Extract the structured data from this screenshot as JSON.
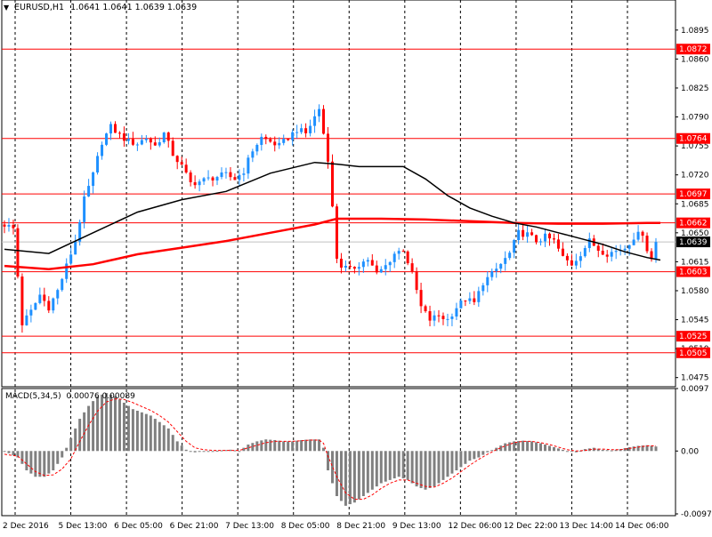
{
  "header": {
    "symbol": "EURUSD,H1",
    "ohlc": "1.0641 1.0641 1.0639 1.0639"
  },
  "colors": {
    "background": "#ffffff",
    "bull": "#1e90ff",
    "bear": "#ff0000",
    "ma_fast": "#000000",
    "ma_slow": "#ff0000",
    "level_line": "#ff0000",
    "macd_hist": "#808080",
    "macd_signal": "#ff0000",
    "current_price_bg": "#000000"
  },
  "chart_data": [
    {
      "type": "candlestick",
      "title": "EURUSD,H1",
      "grid": "vertical-dashed",
      "ylim": [
        1.0465,
        1.0912
      ],
      "y_ticks": [
        "1.0895",
        "1.0860",
        "1.0825",
        "1.0790",
        "1.0755",
        "1.0720",
        "1.0685",
        "1.0650",
        "1.0615",
        "1.0580",
        "1.0545",
        "1.0510",
        "1.0475"
      ],
      "x_ticks": [
        "2 Dec 2016",
        "5 Dec 13:00",
        "6 Dec 05:00",
        "6 Dec 21:00",
        "7 Dec 13:00",
        "8 Dec 05:00",
        "8 Dec 21:00",
        "9 Dec 13:00",
        "12 Dec 06:00",
        "12 Dec 22:00",
        "13 Dec 14:00",
        "14 Dec 06:00"
      ],
      "levels": [
        "1.0872",
        "1.0764",
        "1.0697",
        "1.0662",
        "1.0603",
        "1.0525",
        "1.0505"
      ],
      "current_price": "1.0639",
      "close_path": [
        [
          0,
          1.066
        ],
        [
          2,
          1.0655
        ],
        [
          4,
          1.054
        ],
        [
          6,
          1.0555
        ],
        [
          8,
          1.0575
        ],
        [
          10,
          1.056
        ],
        [
          12,
          1.058
        ],
        [
          14,
          1.061
        ],
        [
          16,
          1.064
        ],
        [
          18,
          1.069
        ],
        [
          20,
          1.072
        ],
        [
          22,
          1.076
        ],
        [
          24,
          1.0778
        ],
        [
          26,
          1.0768
        ],
        [
          28,
          1.076
        ],
        [
          30,
          1.0758
        ],
        [
          32,
          1.0765
        ],
        [
          34,
          1.0755
        ],
        [
          36,
          1.077
        ],
        [
          38,
          1.0745
        ],
        [
          40,
          1.073
        ],
        [
          42,
          1.071
        ],
        [
          44,
          1.0712
        ],
        [
          46,
          1.0715
        ],
        [
          48,
          1.0718
        ],
        [
          50,
          1.072
        ],
        [
          52,
          1.0715
        ],
        [
          54,
          1.0725
        ],
        [
          56,
          1.075
        ],
        [
          58,
          1.0765
        ],
        [
          60,
          1.076
        ],
        [
          62,
          1.0755
        ],
        [
          64,
          1.0765
        ],
        [
          66,
          1.0775
        ],
        [
          68,
          1.077
        ],
        [
          70,
          1.079
        ],
        [
          71,
          1.08
        ],
        [
          72,
          1.077
        ],
        [
          73,
          1.074
        ],
        [
          74,
          1.068
        ],
        [
          75,
          1.062
        ],
        [
          76,
          1.061
        ],
        [
          78,
          1.0605
        ],
        [
          80,
          1.0612
        ],
        [
          82,
          1.0618
        ],
        [
          84,
          1.06
        ],
        [
          86,
          1.061
        ],
        [
          88,
          1.0625
        ],
        [
          90,
          1.063
        ],
        [
          92,
          1.06
        ],
        [
          93,
          1.058
        ],
        [
          94,
          1.056
        ],
        [
          96,
          1.0545
        ],
        [
          98,
          1.055
        ],
        [
          100,
          1.0545
        ],
        [
          102,
          1.056
        ],
        [
          104,
          1.057
        ],
        [
          106,
          1.0565
        ],
        [
          108,
          1.059
        ],
        [
          110,
          1.06
        ],
        [
          112,
          1.0612
        ],
        [
          114,
          1.0625
        ],
        [
          116,
          1.065
        ],
        [
          118,
          1.0648
        ],
        [
          120,
          1.064
        ],
        [
          122,
          1.0645
        ],
        [
          124,
          1.064
        ],
        [
          126,
          1.062
        ],
        [
          128,
          1.0612
        ],
        [
          130,
          1.0625
        ],
        [
          132,
          1.064
        ],
        [
          134,
          1.063
        ],
        [
          136,
          1.0625
        ],
        [
          138,
          1.0628
        ],
        [
          140,
          1.0632
        ],
        [
          142,
          1.0645
        ],
        [
          144,
          1.065
        ],
        [
          145,
          1.063
        ],
        [
          146,
          1.0618
        ],
        [
          147,
          1.0639
        ]
      ],
      "ma_fast": [
        [
          0,
          1.063
        ],
        [
          10,
          1.0625
        ],
        [
          20,
          1.065
        ],
        [
          30,
          1.0675
        ],
        [
          40,
          1.069
        ],
        [
          50,
          1.07
        ],
        [
          60,
          1.0722
        ],
        [
          70,
          1.0735
        ],
        [
          75,
          1.0733
        ],
        [
          80,
          1.073
        ],
        [
          90,
          1.073
        ],
        [
          95,
          1.0715
        ],
        [
          100,
          1.0695
        ],
        [
          105,
          1.068
        ],
        [
          110,
          1.067
        ],
        [
          115,
          1.0662
        ],
        [
          120,
          1.0657
        ],
        [
          125,
          1.065
        ],
        [
          130,
          1.0643
        ],
        [
          135,
          1.0636
        ],
        [
          140,
          1.0627
        ],
        [
          145,
          1.062
        ],
        [
          148,
          1.0617
        ]
      ],
      "ma_slow": [
        [
          0,
          1.061
        ],
        [
          10,
          1.0606
        ],
        [
          20,
          1.0612
        ],
        [
          30,
          1.0624
        ],
        [
          40,
          1.0632
        ],
        [
          50,
          1.064
        ],
        [
          60,
          1.065
        ],
        [
          70,
          1.066
        ],
        [
          75,
          1.0667
        ],
        [
          85,
          1.0667
        ],
        [
          95,
          1.0666
        ],
        [
          105,
          1.0664
        ],
        [
          115,
          1.0662
        ],
        [
          125,
          1.0661
        ],
        [
          135,
          1.0661
        ],
        [
          145,
          1.0662
        ],
        [
          148,
          1.0662
        ]
      ]
    },
    {
      "type": "bar",
      "title": "MACD(5,34,5)",
      "values_label": "0.00076 0.00089",
      "ylim": [
        -0.00976,
        0.0097
      ],
      "y_ticks": [
        "0.0097",
        "0.00",
        "-0.00976"
      ],
      "histogram_path": [
        [
          0,
          0.0
        ],
        [
          3,
          -0.001
        ],
        [
          5,
          -0.003
        ],
        [
          7,
          -0.004
        ],
        [
          9,
          -0.004
        ],
        [
          11,
          -0.003
        ],
        [
          13,
          -0.001
        ],
        [
          15,
          0.002
        ],
        [
          17,
          0.005
        ],
        [
          19,
          0.007
        ],
        [
          21,
          0.0085
        ],
        [
          23,
          0.009
        ],
        [
          25,
          0.0085
        ],
        [
          27,
          0.0075
        ],
        [
          29,
          0.0065
        ],
        [
          31,
          0.006
        ],
        [
          33,
          0.0055
        ],
        [
          35,
          0.0045
        ],
        [
          37,
          0.0035
        ],
        [
          39,
          0.0015
        ],
        [
          41,
          0.0002
        ],
        [
          43,
          -0.0002
        ],
        [
          45,
          0.0
        ],
        [
          47,
          0.0
        ],
        [
          49,
          0.0001
        ],
        [
          51,
          0.0002
        ],
        [
          53,
          0.0
        ],
        [
          55,
          0.001
        ],
        [
          57,
          0.0015
        ],
        [
          59,
          0.0018
        ],
        [
          61,
          0.0017
        ],
        [
          63,
          0.0015
        ],
        [
          65,
          0.0015
        ],
        [
          67,
          0.0017
        ],
        [
          69,
          0.0018
        ],
        [
          71,
          0.0018
        ],
        [
          72,
          0.0005
        ],
        [
          73,
          -0.003
        ],
        [
          75,
          -0.007
        ],
        [
          77,
          -0.0085
        ],
        [
          79,
          -0.008
        ],
        [
          81,
          -0.007
        ],
        [
          83,
          -0.006
        ],
        [
          85,
          -0.005
        ],
        [
          87,
          -0.0045
        ],
        [
          89,
          -0.004
        ],
        [
          91,
          -0.0045
        ],
        [
          93,
          -0.0055
        ],
        [
          95,
          -0.006
        ],
        [
          97,
          -0.0055
        ],
        [
          99,
          -0.0045
        ],
        [
          101,
          -0.0035
        ],
        [
          103,
          -0.0025
        ],
        [
          105,
          -0.0015
        ],
        [
          107,
          -0.001
        ],
        [
          109,
          -0.0002
        ],
        [
          111,
          0.0005
        ],
        [
          113,
          0.0012
        ],
        [
          115,
          0.0015
        ],
        [
          117,
          0.0016
        ],
        [
          119,
          0.0015
        ],
        [
          121,
          0.0012
        ],
        [
          123,
          0.0008
        ],
        [
          125,
          0.0004
        ],
        [
          127,
          0.0
        ],
        [
          129,
          -0.0002
        ],
        [
          131,
          0.0003
        ],
        [
          133,
          0.0005
        ],
        [
          135,
          0.0002
        ],
        [
          137,
          0.0001
        ],
        [
          139,
          0.0003
        ],
        [
          141,
          0.0006
        ],
        [
          143,
          0.0008
        ],
        [
          145,
          0.0009
        ],
        [
          147,
          0.0007
        ]
      ],
      "signal_path": [
        [
          0,
          -0.0005
        ],
        [
          3,
          -0.0008
        ],
        [
          5,
          -0.002
        ],
        [
          7,
          -0.0032
        ],
        [
          9,
          -0.0038
        ],
        [
          11,
          -0.0037
        ],
        [
          13,
          -0.0028
        ],
        [
          15,
          -0.0012
        ],
        [
          17,
          0.0015
        ],
        [
          19,
          0.004
        ],
        [
          21,
          0.0062
        ],
        [
          23,
          0.0076
        ],
        [
          25,
          0.0081
        ],
        [
          27,
          0.008
        ],
        [
          29,
          0.0075
        ],
        [
          31,
          0.0069
        ],
        [
          33,
          0.0063
        ],
        [
          35,
          0.0055
        ],
        [
          37,
          0.0045
        ],
        [
          39,
          0.003
        ],
        [
          41,
          0.0015
        ],
        [
          43,
          0.0005
        ],
        [
          45,
          0.0002
        ],
        [
          47,
          0.0001
        ],
        [
          49,
          0.0001
        ],
        [
          51,
          0.0001
        ],
        [
          53,
          0.0001
        ],
        [
          55,
          0.0005
        ],
        [
          57,
          0.0009
        ],
        [
          59,
          0.0013
        ],
        [
          61,
          0.0015
        ],
        [
          63,
          0.0015
        ],
        [
          65,
          0.0015
        ],
        [
          67,
          0.0016
        ],
        [
          69,
          0.0017
        ],
        [
          71,
          0.0017
        ],
        [
          72,
          0.0012
        ],
        [
          73,
          -0.0008
        ],
        [
          75,
          -0.004
        ],
        [
          77,
          -0.0065
        ],
        [
          79,
          -0.0075
        ],
        [
          81,
          -0.0075
        ],
        [
          83,
          -0.0068
        ],
        [
          85,
          -0.0058
        ],
        [
          87,
          -0.005
        ],
        [
          89,
          -0.0045
        ],
        [
          91,
          -0.0045
        ],
        [
          93,
          -0.005
        ],
        [
          95,
          -0.0055
        ],
        [
          97,
          -0.0056
        ],
        [
          99,
          -0.005
        ],
        [
          101,
          -0.0042
        ],
        [
          103,
          -0.0032
        ],
        [
          105,
          -0.0022
        ],
        [
          107,
          -0.0013
        ],
        [
          109,
          -0.0005
        ],
        [
          111,
          0.0002
        ],
        [
          113,
          0.0008
        ],
        [
          115,
          0.0013
        ],
        [
          117,
          0.0015
        ],
        [
          119,
          0.0015
        ],
        [
          121,
          0.0013
        ],
        [
          123,
          0.001
        ],
        [
          125,
          0.0006
        ],
        [
          127,
          0.0002
        ],
        [
          129,
          0.0
        ],
        [
          131,
          0.0001
        ],
        [
          133,
          0.0003
        ],
        [
          135,
          0.0003
        ],
        [
          137,
          0.0002
        ],
        [
          139,
          0.0002
        ],
        [
          141,
          0.0004
        ],
        [
          143,
          0.0006
        ],
        [
          145,
          0.0008
        ],
        [
          147,
          0.0008
        ]
      ]
    }
  ]
}
